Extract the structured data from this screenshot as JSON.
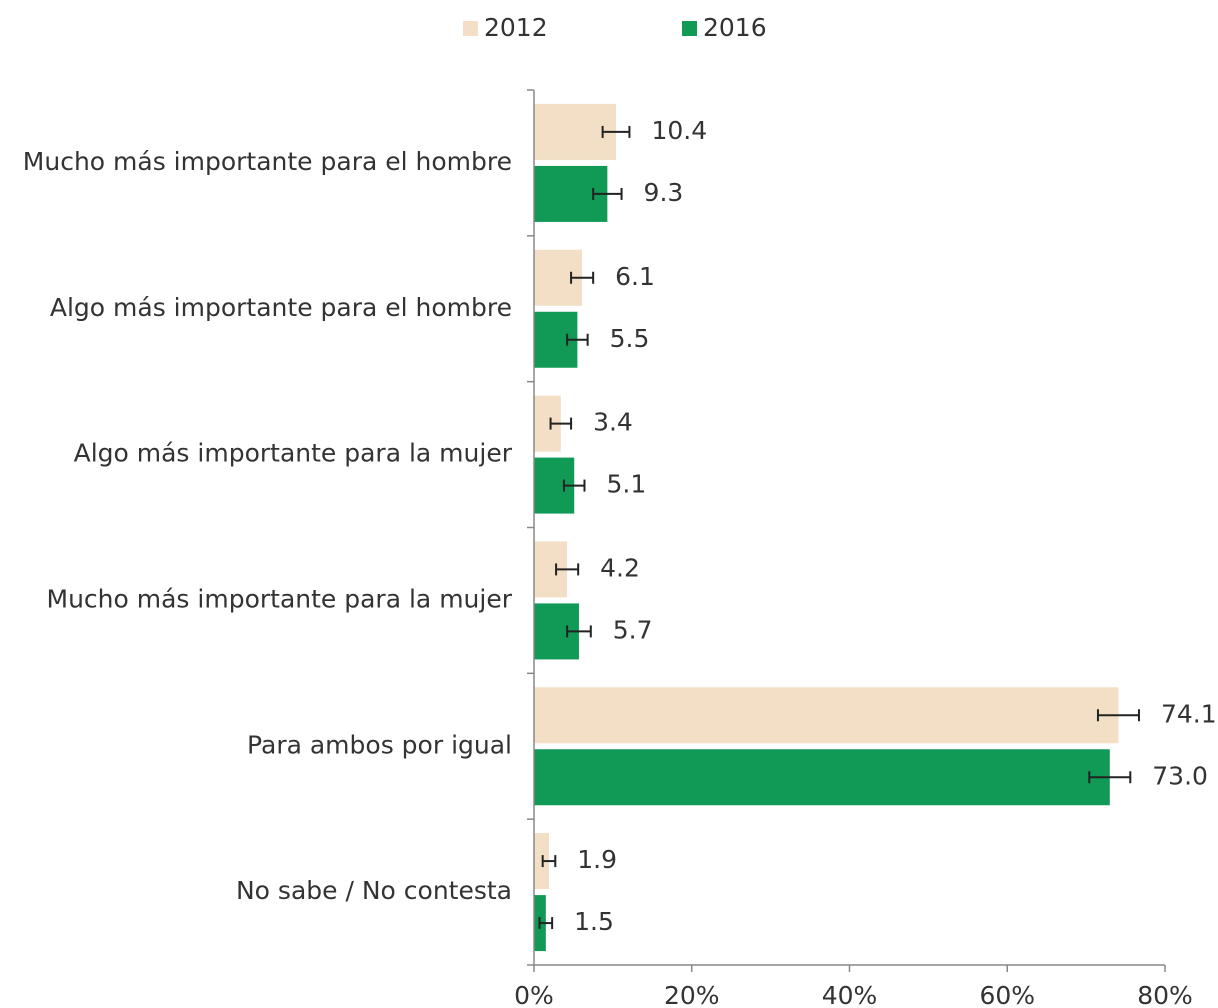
{
  "chart_data": {
    "type": "hbar",
    "categories": [
      "Mucho más importante para el hombre",
      "Algo más importante para el hombre",
      "Algo más importante para la mujer",
      "Mucho más importante para la mujer",
      "Para ambos por igual",
      "No sabe / No contesta"
    ],
    "series": [
      {
        "name": "2012",
        "color": "#f2dfc5",
        "values": [
          10.4,
          6.1,
          3.4,
          4.2,
          74.1,
          1.9
        ],
        "value_labels": [
          "10.4",
          "6.1",
          "3.4",
          "4.2",
          "74.1",
          "1.9"
        ],
        "errors": [
          1.7,
          1.4,
          1.3,
          1.4,
          2.6,
          0.8
        ]
      },
      {
        "name": "2016",
        "color": "#109a55",
        "values": [
          9.3,
          5.5,
          5.1,
          5.7,
          73.0,
          1.5
        ],
        "value_labels": [
          "9.3",
          "5.5",
          "5.1",
          "5.7",
          "73.0",
          "1.5"
        ],
        "errors": [
          1.8,
          1.3,
          1.3,
          1.5,
          2.6,
          0.8
        ]
      }
    ],
    "xlim": [
      0,
      80
    ],
    "xticks": [
      {
        "value": 0,
        "label": "0%"
      },
      {
        "value": 20,
        "label": "20%"
      },
      {
        "value": 40,
        "label": "40%"
      },
      {
        "value": 60,
        "label": "60%"
      },
      {
        "value": 80,
        "label": "80%"
      }
    ],
    "legend": "top"
  }
}
